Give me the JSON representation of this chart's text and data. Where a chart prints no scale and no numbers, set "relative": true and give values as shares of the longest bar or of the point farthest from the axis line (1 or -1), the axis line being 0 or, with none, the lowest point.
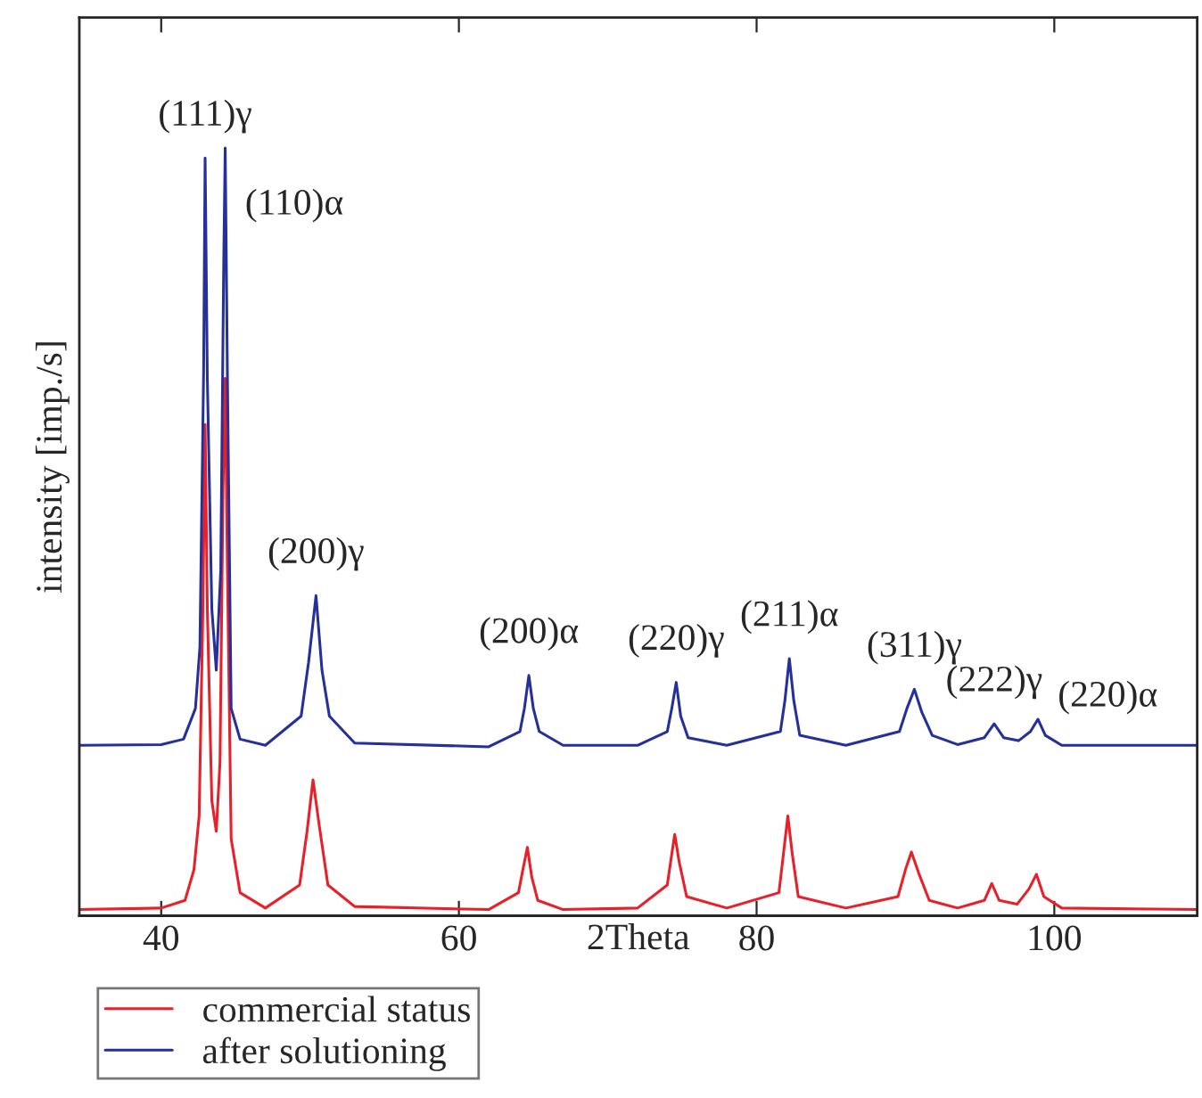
{
  "chart_data": {
    "type": "line",
    "xlabel": "2Theta",
    "ylabel": "intensity [imp./s]",
    "relative": true,
    "legend": "bottom left",
    "grid": false,
    "xlim": [
      34.5,
      109.6
    ],
    "xticks": [
      40,
      60,
      80,
      100
    ],
    "series": [
      {
        "name": "commercial status",
        "color": "#e8202a",
        "x": [
          34.5,
          40,
          41.6,
          42.2,
          42.55,
          42.8,
          42.95,
          43.1,
          43.4,
          43.7,
          43.95,
          44.15,
          44.3,
          44.45,
          44.7,
          45.3,
          47,
          49.3,
          49.8,
          50.2,
          50.6,
          51.2,
          53,
          62,
          64.0,
          64.3,
          64.6,
          64.9,
          65.3,
          67,
          72,
          74.0,
          74.3,
          74.5,
          74.8,
          75.3,
          78,
          81.5,
          81.8,
          82.1,
          82.4,
          82.8,
          86,
          89.5,
          90.0,
          90.4,
          90.9,
          91.6,
          93.5,
          95.3,
          95.8,
          96.3,
          97.5,
          98.3,
          98.8,
          99.3,
          100.5,
          109.6
        ],
        "values": [
          0.008,
          0.01,
          0.02,
          0.06,
          0.13,
          0.4,
          0.64,
          0.4,
          0.15,
          0.11,
          0.2,
          0.55,
          0.7,
          0.45,
          0.1,
          0.03,
          0.01,
          0.04,
          0.11,
          0.177,
          0.12,
          0.04,
          0.012,
          0.008,
          0.03,
          0.06,
          0.089,
          0.05,
          0.02,
          0.008,
          0.01,
          0.04,
          0.08,
          0.106,
          0.07,
          0.025,
          0.01,
          0.03,
          0.08,
          0.13,
          0.08,
          0.025,
          0.01,
          0.025,
          0.06,
          0.083,
          0.055,
          0.02,
          0.01,
          0.02,
          0.042,
          0.02,
          0.015,
          0.035,
          0.054,
          0.025,
          0.01,
          0.008
        ]
      },
      {
        "name": "after solutioning",
        "color": "#25309a",
        "x": [
          34.5,
          40,
          41.5,
          42.3,
          42.6,
          42.85,
          42.95,
          43.1,
          43.4,
          43.7,
          44.0,
          44.2,
          44.3,
          44.45,
          44.7,
          45.3,
          47,
          49.4,
          49.9,
          50.4,
          50.8,
          51.3,
          53,
          62,
          64.1,
          64.4,
          64.7,
          65.0,
          65.4,
          67,
          72,
          74.0,
          74.3,
          74.6,
          74.9,
          75.4,
          78,
          81.6,
          81.9,
          82.2,
          82.5,
          82.9,
          86,
          89.6,
          90.1,
          90.6,
          91.1,
          91.8,
          93.5,
          95.3,
          95.96,
          96.6,
          97.6,
          98.4,
          98.9,
          99.4,
          100.5,
          109.6
        ],
        "values": [
          0.222,
          0.223,
          0.23,
          0.27,
          0.35,
          0.71,
          0.987,
          0.7,
          0.4,
          0.32,
          0.45,
          0.85,
          1.0,
          0.7,
          0.27,
          0.23,
          0.222,
          0.26,
          0.33,
          0.417,
          0.32,
          0.26,
          0.225,
          0.22,
          0.24,
          0.27,
          0.313,
          0.27,
          0.24,
          0.222,
          0.222,
          0.24,
          0.27,
          0.304,
          0.26,
          0.232,
          0.222,
          0.24,
          0.28,
          0.335,
          0.28,
          0.235,
          0.222,
          0.24,
          0.27,
          0.295,
          0.265,
          0.235,
          0.223,
          0.232,
          0.25,
          0.232,
          0.228,
          0.24,
          0.256,
          0.235,
          0.222,
          0.222
        ]
      }
    ],
    "annotations": [
      {
        "text": "(111)γ",
        "x": 42.95,
        "y": 0.987
      },
      {
        "text": "(110)α",
        "x": 44.3,
        "y": 1.0
      },
      {
        "text": "(200)γ",
        "x": 50.4,
        "y": 0.417
      },
      {
        "text": "(200)α",
        "x": 64.7,
        "y": 0.313
      },
      {
        "text": "(220)γ",
        "x": 74.6,
        "y": 0.304
      },
      {
        "text": "(211)α",
        "x": 82.2,
        "y": 0.335
      },
      {
        "text": "(311)γ",
        "x": 90.6,
        "y": 0.295
      },
      {
        "text": "(222)γ",
        "x": 95.96,
        "y": 0.25
      },
      {
        "text": "(220)α",
        "x": 98.9,
        "y": 0.256
      }
    ]
  }
}
